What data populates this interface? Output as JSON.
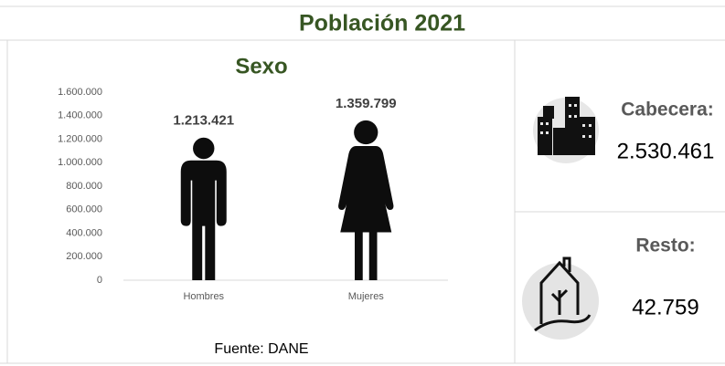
{
  "title": "Población 2021",
  "chart_data": {
    "type": "pictograph",
    "title": "Sexo",
    "categories": [
      "Hombres",
      "Mujeres"
    ],
    "values": [
      1213421,
      1359799
    ],
    "value_labels": [
      "1.213.421",
      "1.359.799"
    ],
    "color": "#0d0d0d",
    "ylim": [
      0,
      1600000
    ],
    "yticks": [
      0,
      {
        "value": 200000,
        "label": "200.000"
      },
      {
        "value": 400000,
        "label": "400.000"
      },
      {
        "value": 600000,
        "label": "600.000"
      },
      {
        "value": 800000,
        "label": "800.000"
      },
      {
        "value": 1000000,
        "label": "1.000.000"
      },
      {
        "value": 1200000,
        "label": "1.200.000"
      },
      {
        "value": 1400000,
        "label": "1.400.000"
      },
      {
        "value": 1600000,
        "label": "1.600.000"
      }
    ]
  },
  "source": "Fuente: DANE",
  "cabecera": {
    "label": "Cabecera:",
    "value": "2.530.461"
  },
  "resto": {
    "label": "Resto:",
    "value": "42.759"
  }
}
